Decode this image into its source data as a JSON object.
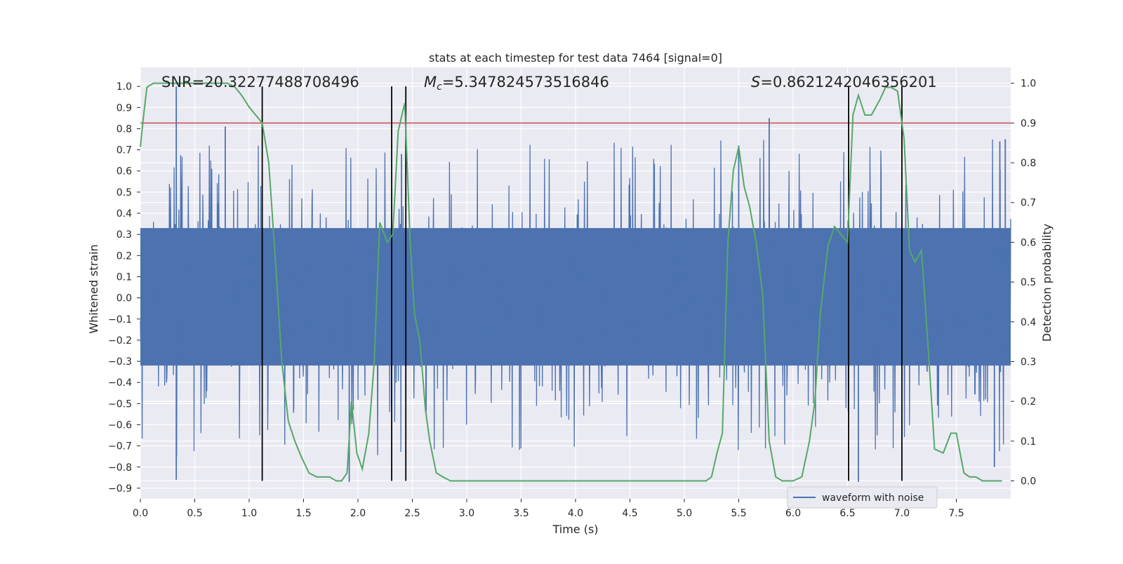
{
  "chart_data": {
    "type": "line",
    "title": "stats at each timestep for test data 7464 [signal=0]",
    "xlabel": "Time (s)",
    "ylabel": "Whitened strain",
    "ylabel_right": "Detection probability",
    "xlim": [
      0.0,
      8.0
    ],
    "ylim": [
      -0.95,
      1.09
    ],
    "ylim_right": [
      -0.045,
      1.04
    ],
    "x_ticks": [
      0.0,
      0.5,
      1.0,
      1.5,
      2.0,
      2.5,
      3.0,
      3.5,
      4.0,
      4.5,
      5.0,
      5.5,
      6.0,
      6.5,
      7.0,
      7.5
    ],
    "x_tick_labels": [
      "0.0",
      "0.5",
      "1.0",
      "1.5",
      "2.0",
      "2.5",
      "3.0",
      "3.5",
      "4.0",
      "4.5",
      "5.0",
      "5.5",
      "6.0",
      "6.5",
      "7.0",
      "7.5"
    ],
    "y_ticks": [
      1.0,
      0.9,
      0.8,
      0.7,
      0.6,
      0.5,
      0.4,
      0.3,
      0.2,
      0.1,
      0.0,
      -0.1,
      -0.2,
      -0.3,
      -0.4,
      -0.5,
      -0.6,
      -0.7,
      -0.8,
      -0.9
    ],
    "y_tick_labels": [
      "1.0",
      "0.9",
      "0.8",
      "0.7",
      "0.6",
      "0.5",
      "0.4",
      "0.3",
      "0.2",
      "0.1",
      "0.0",
      "−0.1",
      "−0.2",
      "−0.3",
      "−0.4",
      "−0.5",
      "−0.6",
      "−0.7",
      "−0.8",
      "−0.9"
    ],
    "y_right_ticks": [
      1.0,
      0.9,
      0.8,
      0.7,
      0.6,
      0.5,
      0.4,
      0.3,
      0.2,
      0.1,
      0.0
    ],
    "y_right_tick_labels": [
      "1.0",
      "0.9",
      "0.8",
      "0.7",
      "0.6",
      "0.5",
      "0.4",
      "0.3",
      "0.2",
      "0.1",
      "0.0"
    ],
    "grid": true,
    "legend_position": "bottom-right",
    "series": [
      {
        "name": "waveform with noise",
        "axis": "left",
        "color": "#4c72b0",
        "duration_s": 8.0,
        "band_core": [
          -0.32,
          0.33
        ],
        "peaks_top": [
          [
            0.33,
            1.0
          ],
          [
            0.78,
            0.81
          ],
          [
            5.78,
            0.85
          ],
          [
            7.95,
            0.75
          ],
          [
            5.5,
            0.72
          ],
          [
            2.4,
            0.68
          ],
          [
            7.9,
            0.74
          ]
        ],
        "peaks_bottom": [
          [
            0.33,
            -0.86
          ],
          [
            1.92,
            -0.87
          ],
          [
            6.6,
            -0.87
          ],
          [
            7.85,
            -0.8
          ]
        ]
      },
      {
        "name": "",
        "axis": "right",
        "color": "#55a868",
        "x": [
          0.0,
          0.03,
          0.06,
          0.12,
          0.2,
          0.3,
          0.4,
          0.5,
          0.6,
          0.7,
          0.8,
          0.87,
          0.93,
          1.0,
          1.06,
          1.12,
          1.18,
          1.24,
          1.3,
          1.36,
          1.42,
          1.48,
          1.55,
          1.62,
          1.68,
          1.74,
          1.8,
          1.85,
          1.9,
          1.94,
          1.99,
          2.04,
          2.1,
          2.15,
          2.2,
          2.27,
          2.32,
          2.37,
          2.43,
          2.48,
          2.52,
          2.57,
          2.62,
          2.66,
          2.72,
          2.78,
          2.85,
          3.0,
          3.2,
          3.4,
          3.55,
          3.6,
          3.7,
          3.8,
          4.0,
          4.1,
          4.15,
          4.2,
          4.3,
          4.5,
          4.7,
          5.0,
          5.1,
          5.2,
          5.25,
          5.3,
          5.35,
          5.4,
          5.45,
          5.5,
          5.55,
          5.6,
          5.66,
          5.72,
          5.78,
          5.84,
          5.9,
          5.95,
          6.0,
          6.08,
          6.15,
          6.2,
          6.25,
          6.32,
          6.38,
          6.44,
          6.5,
          6.55,
          6.6,
          6.66,
          6.72,
          6.8,
          6.85,
          6.9,
          6.96,
          7.02,
          7.07,
          7.12,
          7.18,
          7.25,
          7.3,
          7.38,
          7.45,
          7.5,
          7.57,
          7.62,
          7.68,
          7.74,
          7.8,
          7.86,
          7.92
        ],
        "y": [
          0.84,
          0.92,
          0.99,
          1.0,
          1.0,
          1.0,
          1.0,
          1.0,
          1.0,
          1.0,
          1.0,
          0.99,
          0.97,
          0.94,
          0.92,
          0.9,
          0.8,
          0.56,
          0.3,
          0.15,
          0.1,
          0.06,
          0.02,
          0.01,
          0.01,
          0.01,
          0.0,
          0.0,
          0.02,
          0.2,
          0.07,
          0.03,
          0.12,
          0.3,
          0.65,
          0.6,
          0.62,
          0.88,
          0.95,
          0.6,
          0.42,
          0.35,
          0.18,
          0.1,
          0.02,
          0.01,
          0.0,
          0.0,
          0.0,
          0.0,
          0.0,
          0.0,
          0.0,
          0.0,
          0.0,
          0.0,
          0.0,
          0.0,
          0.0,
          0.0,
          0.0,
          0.0,
          0.0,
          0.0,
          0.01,
          0.07,
          0.12,
          0.6,
          0.78,
          0.84,
          0.74,
          0.69,
          0.6,
          0.47,
          0.1,
          0.01,
          0.0,
          0.0,
          0.0,
          0.01,
          0.1,
          0.2,
          0.42,
          0.59,
          0.64,
          0.62,
          0.6,
          0.92,
          0.97,
          0.92,
          0.92,
          0.96,
          0.99,
          0.99,
          0.98,
          0.86,
          0.58,
          0.55,
          0.58,
          0.3,
          0.08,
          0.07,
          0.12,
          0.12,
          0.02,
          0.01,
          0.01,
          0.0,
          0.0,
          0.0,
          0.0
        ]
      }
    ],
    "threshold_line": {
      "axis": "right",
      "y": 0.9,
      "color": "#c44e52"
    },
    "vertical_lines_s": [
      1.12,
      2.31,
      2.44,
      6.51,
      7.0
    ],
    "annotations": {
      "snr": "SNR=20.32277488708496",
      "mc_symbol": "M",
      "mc_subscript": "c",
      "mc_value": "=5.347824573516846",
      "s_symbol": "S",
      "s_value": "=0.8621242046356201"
    }
  }
}
